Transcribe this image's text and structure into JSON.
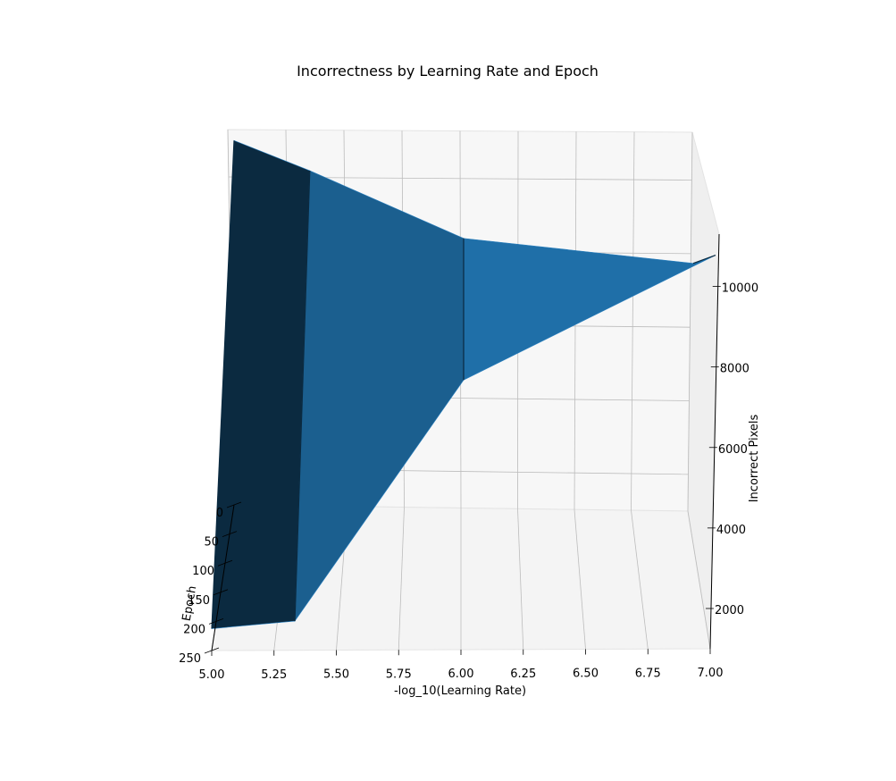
{
  "chart_data": {
    "type": "surface3d",
    "title": "Incorrectness by Learning Rate and Epoch",
    "xlabel": "-log_10(Learning Rate)",
    "ylabel": "Epoch",
    "zlabel": "Incorrect Pixels",
    "x_ticks": [
      "5.00",
      "5.25",
      "5.50",
      "5.75",
      "6.00",
      "6.25",
      "6.50",
      "6.75",
      "7.00"
    ],
    "y_ticks": [
      "0",
      "50",
      "100",
      "150",
      "200",
      "250"
    ],
    "z_ticks": [
      "2000",
      "4000",
      "6000",
      "8000",
      "10000"
    ],
    "grid": true,
    "surface_color": "#1f77b4",
    "x_values": [
      5.0,
      5.33,
      6.0,
      7.0
    ],
    "epoch_values": [
      0,
      250
    ],
    "surface_z": [
      [
        11000,
        10200,
        8400,
        7800
      ],
      [
        1600,
        1800,
        8400,
        11800
      ]
    ]
  }
}
